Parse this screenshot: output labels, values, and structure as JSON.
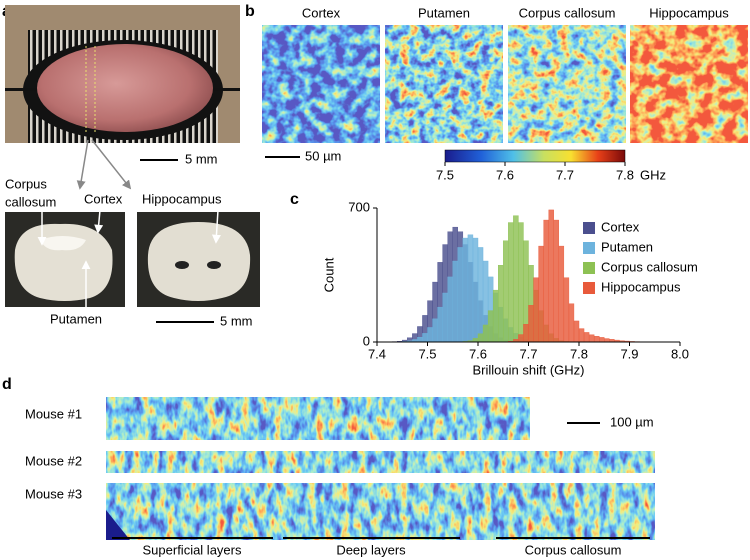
{
  "panel_a": {
    "label": "a",
    "top_scale": "5 mm",
    "annotations": {
      "corpus_callosum": [
        "Corpus",
        "callosum"
      ],
      "cortex": "Cortex",
      "putamen": "Putamen",
      "hippocampus": "Hippocampus"
    },
    "bottom_scale": "5 mm"
  },
  "panel_b": {
    "label": "b",
    "titles": [
      "Cortex",
      "Putamen",
      "Corpus callosum",
      "Hippocampus"
    ],
    "scale": "50 µm",
    "colorbar": {
      "lim": [
        7.5,
        7.8
      ],
      "ticks": [
        7.5,
        7.6,
        7.7,
        7.8
      ],
      "unit": "GHz"
    }
  },
  "chart_data": {
    "type": "histogram",
    "panel_label": "c",
    "x_label": "Brillouin shift (GHz)",
    "y_label": "Count",
    "bins": [
      7.4,
      7.41,
      7.42,
      7.43,
      7.44,
      7.45,
      7.46,
      7.47,
      7.48,
      7.49,
      7.5,
      7.51,
      7.52,
      7.53,
      7.54,
      7.55,
      7.56,
      7.57,
      7.58,
      7.59,
      7.6,
      7.61,
      7.62,
      7.63,
      7.64,
      7.65,
      7.66,
      7.67,
      7.68,
      7.69,
      7.7,
      7.71,
      7.72,
      7.73,
      7.74,
      7.75,
      7.76,
      7.77,
      7.78,
      7.79,
      7.8,
      7.81,
      7.82,
      7.83,
      7.84,
      7.85,
      7.86,
      7.87,
      7.88,
      7.89,
      7.9,
      7.91,
      7.92,
      7.93,
      7.94,
      7.95,
      7.96,
      7.97,
      7.98,
      7.99,
      8.0
    ],
    "series": [
      {
        "name": "Cortex",
        "color": "#4b4f8e",
        "values": [
          0,
          0,
          1,
          2,
          4,
          10,
          22,
          44,
          81,
          139,
          216,
          313,
          416,
          509,
          576,
          600,
          576,
          509,
          416,
          313,
          216,
          139,
          81,
          44,
          22,
          10,
          4,
          2,
          1,
          0,
          0,
          0,
          0,
          0,
          0,
          0,
          0,
          0,
          0,
          0,
          0,
          0,
          0,
          0,
          0,
          0,
          0,
          0,
          0,
          0,
          0,
          0,
          0,
          0,
          0,
          0,
          0,
          0,
          0,
          0
        ]
      },
      {
        "name": "Putamen",
        "color": "#6db3dd",
        "values": [
          0,
          0,
          0,
          0,
          1,
          3,
          6,
          13,
          25,
          45,
          76,
          121,
          182,
          256,
          340,
          423,
          494,
          543,
          560,
          543,
          494,
          423,
          340,
          256,
          182,
          121,
          76,
          45,
          25,
          13,
          6,
          3,
          1,
          0,
          0,
          0,
          0,
          0,
          0,
          0,
          0,
          0,
          0,
          0,
          0,
          0,
          0,
          0,
          0,
          0,
          0,
          0,
          0,
          0,
          0,
          0,
          0,
          0,
          0,
          0
        ]
      },
      {
        "name": "Corpus callosum",
        "color": "#8dc153",
        "values": [
          0,
          0,
          0,
          0,
          0,
          0,
          0,
          0,
          0,
          0,
          0,
          0,
          0,
          0,
          0,
          0,
          1,
          3,
          7,
          19,
          43,
          89,
          164,
          271,
          401,
          529,
          624,
          660,
          624,
          529,
          401,
          271,
          164,
          89,
          43,
          19,
          7,
          3,
          1,
          0,
          0,
          0,
          0,
          0,
          0,
          0,
          0,
          0,
          0,
          0,
          0,
          0,
          0,
          0,
          0,
          0,
          0,
          0,
          0,
          0
        ]
      },
      {
        "name": "Hippocampus",
        "color": "#e85a3b",
        "values": [
          0,
          0,
          0,
          0,
          0,
          0,
          0,
          0,
          0,
          0,
          0,
          0,
          0,
          0,
          0,
          0,
          0,
          0,
          0,
          0,
          0,
          0,
          0,
          0,
          0,
          1,
          4,
          14,
          39,
          93,
          192,
          336,
          501,
          637,
          690,
          637,
          501,
          336,
          200,
          110,
          70,
          50,
          38,
          30,
          24,
          18,
          14,
          10,
          7,
          5,
          3,
          2,
          1,
          0,
          0,
          0,
          0,
          0,
          0,
          0
        ]
      }
    ],
    "xlim": [
      7.4,
      8.0
    ],
    "xticks": [
      7.4,
      7.5,
      7.6,
      7.7,
      7.8,
      7.9,
      {
        "value": 8.0,
        "label": "8.0"
      }
    ],
    "ylim": [
      0,
      700
    ],
    "yticks": [
      0,
      700
    ],
    "legend": "upper right"
  },
  "panel_d": {
    "label": "d",
    "rows": [
      "Mouse #1",
      "Mouse #2",
      "Mouse #3"
    ],
    "scale": "100 µm",
    "regions": [
      "Superficial layers",
      "Deep layers",
      "Corpus callosum"
    ]
  }
}
